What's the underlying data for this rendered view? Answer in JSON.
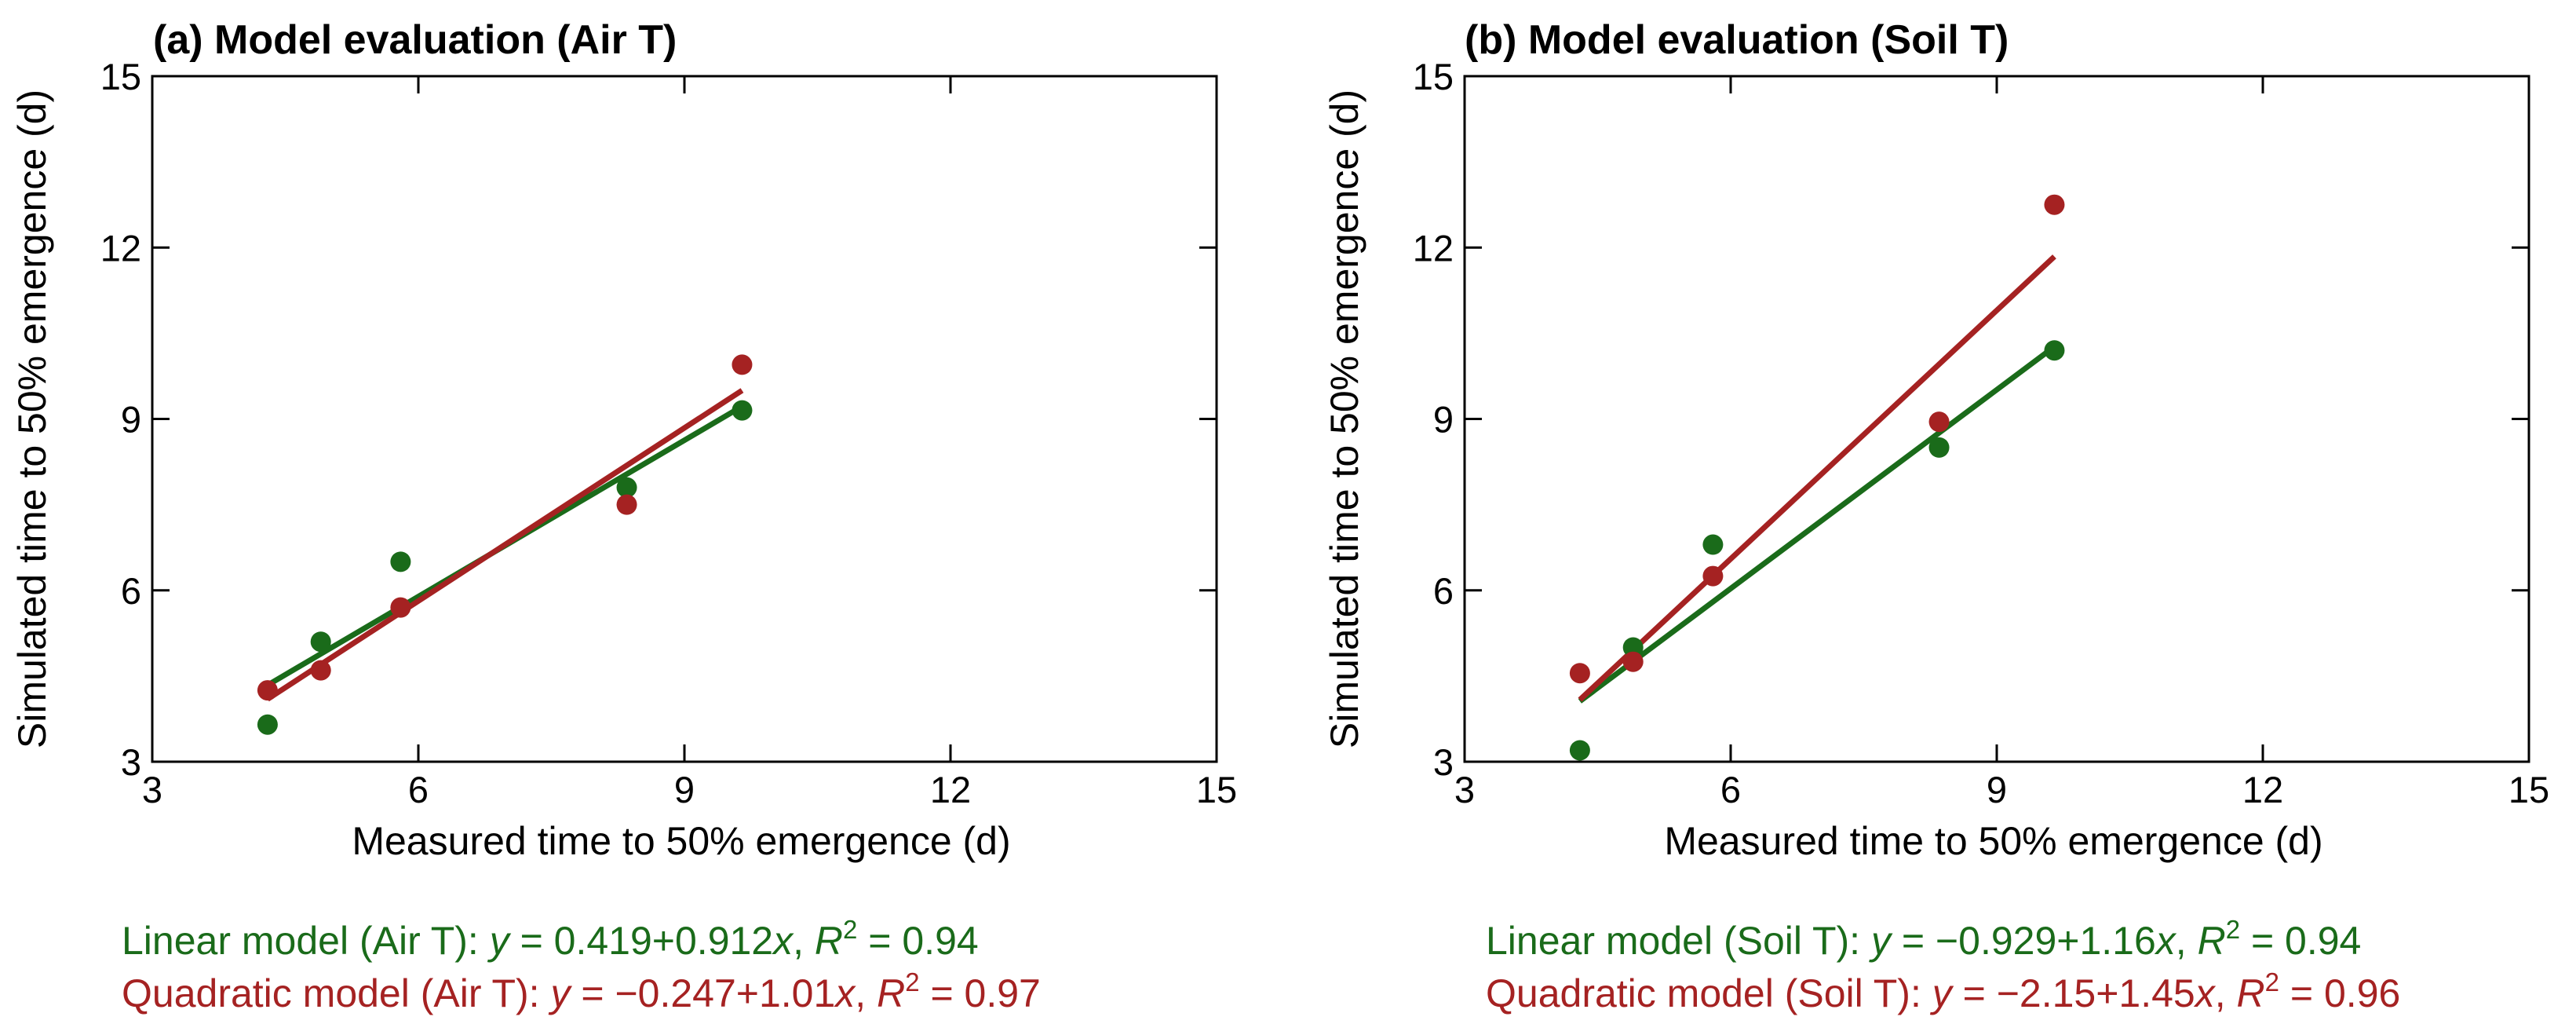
{
  "colors": {
    "linear": "#1a6b1a",
    "quadratic": "#a52222",
    "axis": "#000000"
  },
  "chart_data": [
    {
      "type": "scatter",
      "title": "(a) Model evaluation (Air T)",
      "xlabel": "Measured time to 50% emergence (d)",
      "ylabel": "Simulated time to 50% emergence (d)",
      "xlim": [
        3,
        15
      ],
      "ylim": [
        3,
        15
      ],
      "xticks": [
        "3",
        "6",
        "9",
        "12",
        "15"
      ],
      "yticks": [
        "3",
        "6",
        "9",
        "12",
        "15"
      ],
      "series": [
        {
          "name": "Linear model (Air T)",
          "color": "#1a6b1a",
          "x": [
            4.3,
            4.9,
            5.8,
            8.35,
            9.65
          ],
          "y": [
            3.65,
            5.1,
            6.5,
            7.8,
            9.15
          ],
          "fit": {
            "intercept": 0.419,
            "slope": 0.912
          }
        },
        {
          "name": "Quadratic model (Air T)",
          "color": "#a52222",
          "x": [
            4.3,
            4.9,
            5.8,
            8.35,
            9.65
          ],
          "y": [
            4.25,
            4.6,
            5.7,
            7.5,
            9.95
          ],
          "fit": {
            "intercept": -0.247,
            "slope": 1.01
          }
        }
      ],
      "equations": [
        {
          "name": "Linear model (Air T): ",
          "eq": "0.419+0.912",
          "r2": " = 0.94",
          "color": "#1a6b1a"
        },
        {
          "name": "Quadratic model (Air T): ",
          "eq": "−0.247+1.01",
          "r2": " = 0.97",
          "color": "#a52222"
        }
      ]
    },
    {
      "type": "scatter",
      "title": "(b) Model evaluation (Soil T)",
      "xlabel": "Measured time to 50% emergence (d)",
      "ylabel": "Simulated time to 50% emergence (d)",
      "xlim": [
        3,
        15
      ],
      "ylim": [
        3,
        15
      ],
      "xticks": [
        "3",
        "6",
        "9",
        "12",
        "15"
      ],
      "yticks": [
        "3",
        "6",
        "9",
        "12",
        "15"
      ],
      "series": [
        {
          "name": "Linear model (Soil T)",
          "color": "#1a6b1a",
          "x": [
            4.3,
            4.9,
            5.8,
            8.35,
            9.65
          ],
          "y": [
            3.2,
            5.0,
            6.8,
            8.5,
            10.2
          ],
          "fit": {
            "intercept": -0.929,
            "slope": 1.16
          }
        },
        {
          "name": "Quadratic model (Soil T)",
          "color": "#a52222",
          "x": [
            4.3,
            4.9,
            5.8,
            8.35,
            9.65
          ],
          "y": [
            4.55,
            4.75,
            6.25,
            8.95,
            12.75
          ],
          "fit": {
            "intercept": -2.15,
            "slope": 1.45
          }
        }
      ],
      "equations": [
        {
          "name": "Linear model (Soil T): ",
          "eq": "−0.929+1.16",
          "r2": " = 0.94",
          "color": "#1a6b1a"
        },
        {
          "name": "Quadratic model (Soil T): ",
          "eq": "−2.15+1.45",
          "r2": " = 0.96",
          "color": "#a52222"
        }
      ]
    }
  ]
}
